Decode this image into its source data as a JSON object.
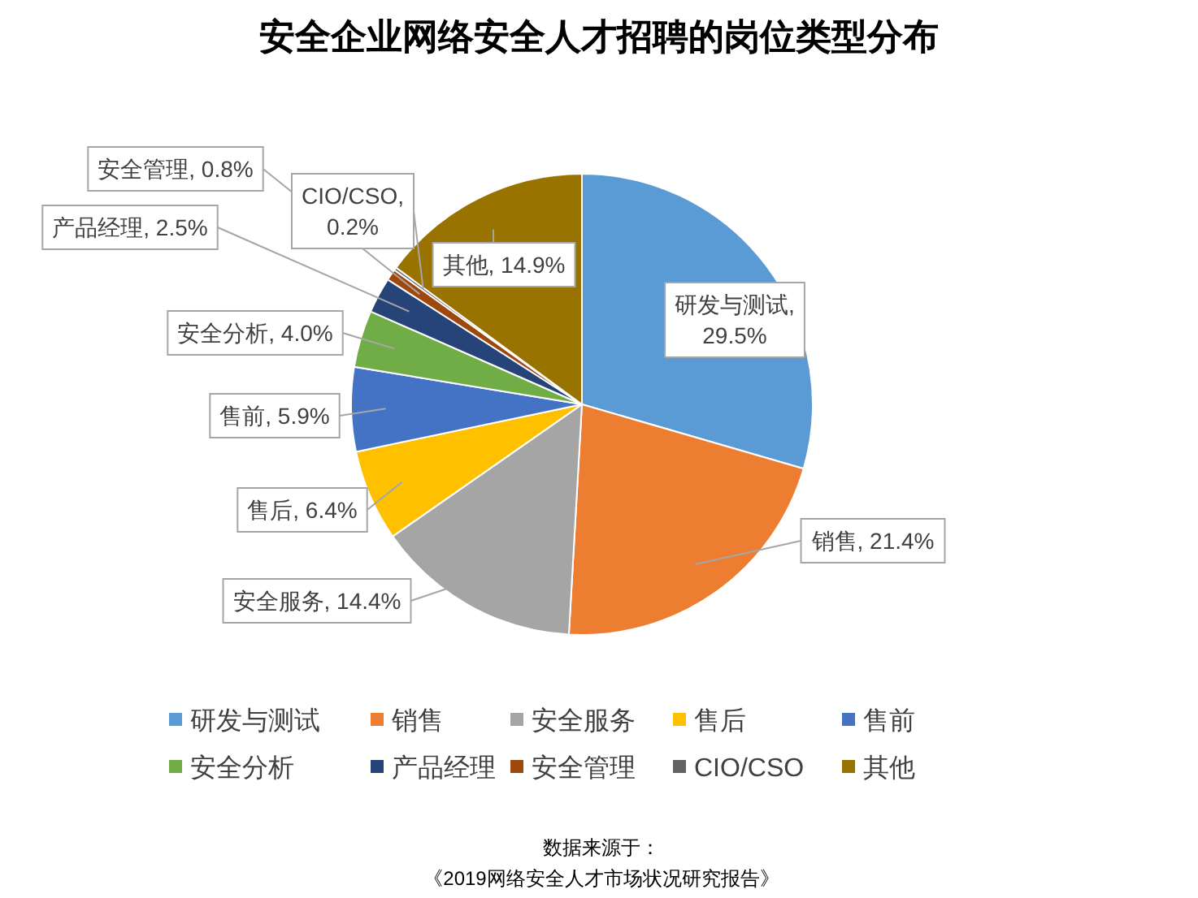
{
  "chart_data": {
    "type": "pie",
    "title": "安全企业网络安全人才招聘的岗位类型分布",
    "categories": [
      "研发与测试",
      "销售",
      "安全服务",
      "售后",
      "售前",
      "安全分析",
      "产品经理",
      "安全管理",
      "CIO/CSO",
      "其他"
    ],
    "values": [
      29.5,
      21.4,
      14.4,
      6.4,
      5.9,
      4.0,
      2.5,
      0.8,
      0.2,
      14.9
    ],
    "colors": [
      "#5b9bd5",
      "#ed7d31",
      "#a5a5a5",
      "#ffc000",
      "#4472c4",
      "#70ad47",
      "#264478",
      "#9e480e",
      "#636363",
      "#997300"
    ],
    "value_labels": [
      "研发与测试, 29.5%",
      "销售, 21.4%",
      "安全服务, 14.4%",
      "售后, 6.4%",
      "售前, 5.9%",
      "安全分析, 4.0%",
      "产品经理, 2.5%",
      "安全管理, 0.8%",
      "CIO/CSO, 0.2%",
      "其他, 14.9%"
    ],
    "legend": "bottom",
    "annotations": [
      "数据来源于：",
      "《2019网络安全人才市场状况研究报告》"
    ]
  }
}
